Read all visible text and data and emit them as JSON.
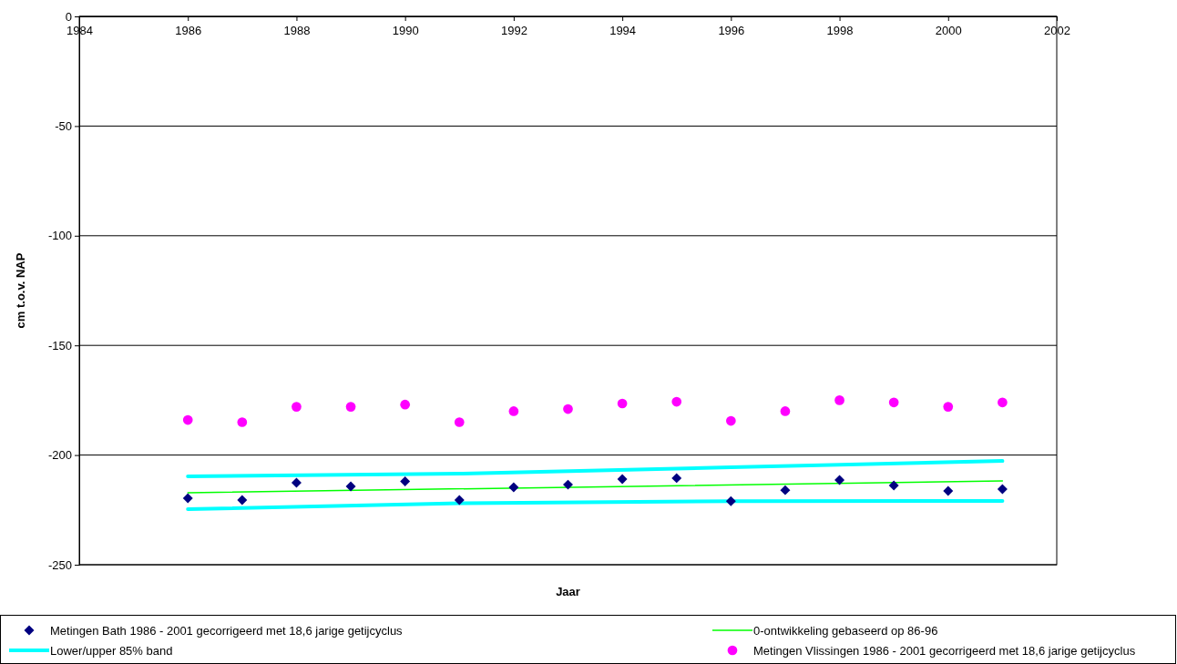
{
  "chart_data": {
    "type": "scatter",
    "xlabel": "Jaar",
    "ylabel": "cm t.o.v. NAP",
    "xlim": [
      1984,
      2002
    ],
    "xticks": [
      1984,
      1986,
      1988,
      1990,
      1992,
      1994,
      1996,
      1998,
      2000,
      2002
    ],
    "ylim": [
      -250,
      0
    ],
    "yticks": [
      -250,
      -200,
      -150,
      -100,
      -50,
      0
    ],
    "grid": "y",
    "legend": "bottom",
    "series": [
      {
        "name": "Metingen Bath 1986 - 2001 gecorrigeerd met 18,6 jarige getijcyclus",
        "marker": "diamond",
        "color": "#000080",
        "x": [
          1986,
          1987,
          1988,
          1989,
          1990,
          1991,
          1992,
          1993,
          1994,
          1995,
          1996,
          1997,
          1998,
          1999,
          2000,
          2001
        ],
        "values": [
          -219.7,
          -220.5,
          -212.6,
          -214.3,
          -212,
          -220.5,
          -214.7,
          -213.5,
          -211,
          -210.5,
          -221,
          -216,
          -211.4,
          -213.9,
          -216.4,
          -215.5
        ]
      },
      {
        "name": "0-ontwikkeling gebaseerd op 86-96",
        "type": "line",
        "color": "#00ff00",
        "x": [
          1986,
          2001
        ],
        "values": [
          -217.2,
          -211.8
        ]
      },
      {
        "name": "Lower/upper 85% band",
        "type": "line",
        "color": "#00ffff",
        "x": [
          1986,
          1991,
          1996,
          2001
        ],
        "values": [
          -224.7,
          -222,
          -221,
          -220.9
        ]
      },
      {
        "type": "line",
        "color": "#00ffff",
        "x": [
          1986,
          1991,
          1996,
          2001
        ],
        "values": [
          -209.7,
          -208.5,
          -205.6,
          -202.7
        ]
      },
      {
        "name": "Metingen Vlissingen 1986 - 2001 gecorrigeerd met 18,6 jarige getijcyclus",
        "marker": "circle",
        "color": "#ff00ff",
        "x": [
          1986,
          1987,
          1988,
          1989,
          1990,
          1991,
          1992,
          1993,
          1994,
          1995,
          1996,
          1997,
          1998,
          1999,
          2000,
          2001
        ],
        "values": [
          -184,
          -185,
          -178,
          -178,
          -177,
          -185,
          -180,
          -179,
          -176.5,
          -175.7,
          -184.4,
          -180,
          -175,
          -176,
          -178,
          -176
        ]
      }
    ]
  }
}
